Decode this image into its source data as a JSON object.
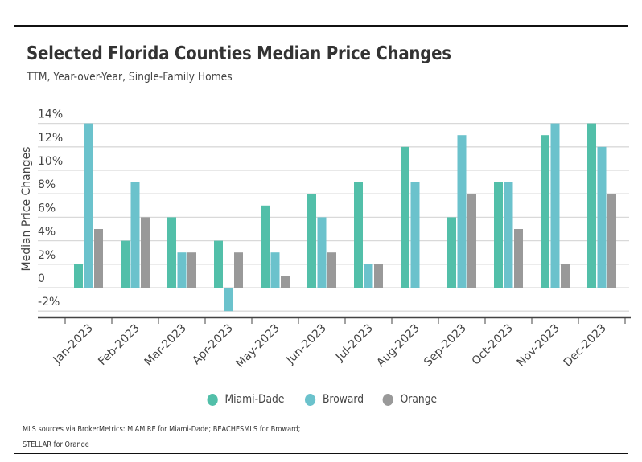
{
  "header": {
    "title": "Selected Florida Counties Median Price Changes",
    "subtitle": "TTM, Year-over-Year, Single-Family Homes"
  },
  "footer": {
    "source_line1": "MLS sources via BrokerMetrics: MIAMIRE for Miami-Dade; BEACHESMLS for Broward;",
    "source_line2": "STELLAR for Orange"
  },
  "colors": {
    "miami_dade": "#52BFA9",
    "broward": "#6BC2CC",
    "orange": "#999999",
    "grid": "#d9d9d9",
    "axis": "#444444"
  },
  "chart_data": {
    "type": "bar",
    "title": "Selected Florida Counties Median Price Changes",
    "subtitle": "TTM, Year-over-Year, Single-Family Homes",
    "xlabel": "",
    "ylabel": "Median Price Changes",
    "ylim": [
      -2,
      14
    ],
    "yticks": [
      -2,
      0,
      2,
      4,
      6,
      8,
      10,
      12,
      14
    ],
    "ytick_labels": [
      "-2%",
      "0",
      "2%",
      "4%",
      "6%",
      "8%",
      "10%",
      "12%",
      "14%"
    ],
    "grid": true,
    "legend_position": "bottom",
    "categories": [
      "Jan-2023",
      "Feb-2023",
      "Mar-2023",
      "Apr-2023",
      "May-2023",
      "Jun-2023",
      "Jul-2023",
      "Aug-2023",
      "Sep-2023",
      "Oct-2023",
      "Nov-2023",
      "Dec-2023"
    ],
    "series": [
      {
        "name": "Miami-Dade",
        "color": "#52BFA9",
        "values": [
          2,
          4,
          6,
          4,
          7,
          8,
          9,
          12,
          6,
          9,
          13,
          14
        ]
      },
      {
        "name": "Broward",
        "color": "#6BC2CC",
        "values": [
          14,
          9,
          3,
          -2,
          3,
          6,
          2,
          9,
          13,
          9,
          14,
          12
        ]
      },
      {
        "name": "Orange",
        "color": "#999999",
        "values": [
          5,
          6,
          3,
          3,
          1,
          3,
          2,
          0,
          8,
          5,
          2,
          8
        ]
      }
    ]
  }
}
